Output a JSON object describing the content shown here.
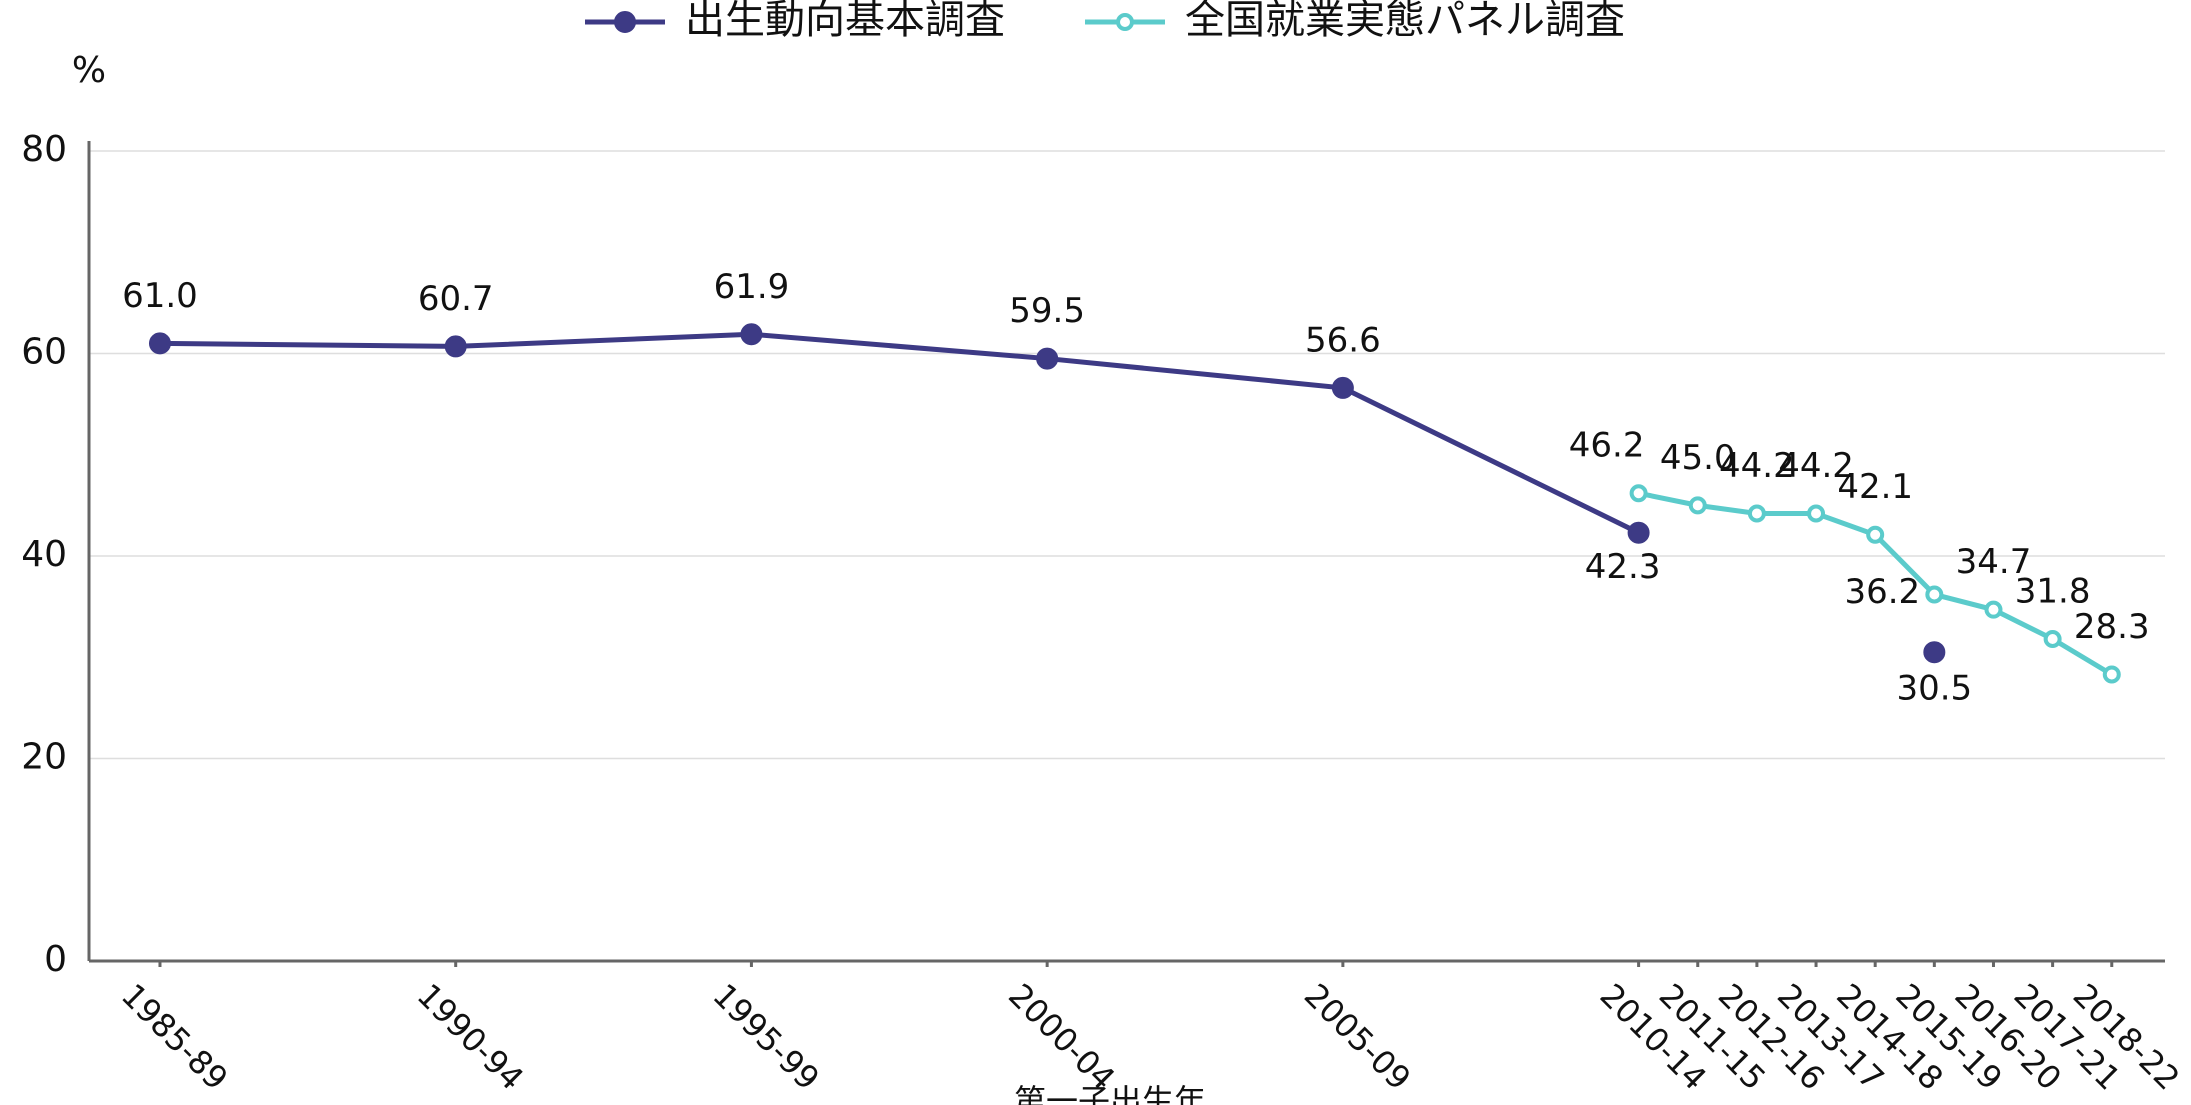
{
  "chart_data": {
    "type": "line",
    "x": [
      1985,
      1990,
      1995,
      2000,
      2005,
      2010,
      2011,
      2012,
      2013,
      2014,
      2015,
      2016,
      2017,
      2018
    ],
    "xlim": [
      1983.8,
      2018.9
    ],
    "xticks": [
      {
        "value": 1985,
        "label": "1985-89"
      },
      {
        "value": 1990,
        "label": "1990-94"
      },
      {
        "value": 1995,
        "label": "1995-99"
      },
      {
        "value": 2000,
        "label": "2000-04"
      },
      {
        "value": 2005,
        "label": "2005-09"
      },
      {
        "value": 2010,
        "label": "2010-14"
      },
      {
        "value": 2011,
        "label": "2011-15"
      },
      {
        "value": 2012,
        "label": "2012-16"
      },
      {
        "value": 2013,
        "label": "2013-17"
      },
      {
        "value": 2014,
        "label": "2014-18"
      },
      {
        "value": 2015,
        "label": "2015-19"
      },
      {
        "value": 2016,
        "label": "2016-20"
      },
      {
        "value": 2017,
        "label": "2017-21"
      },
      {
        "value": 2018,
        "label": "2018-22"
      }
    ],
    "xlabel": "第一子出生年",
    "ylabel": "%",
    "ylim": [
      0,
      80
    ],
    "yticks": [
      0,
      20,
      40,
      60,
      80
    ],
    "grid": true,
    "legend": "top",
    "series": [
      {
        "name": "出生動向基本調査",
        "color": "#3d3a85",
        "marker": "filled",
        "values": [
          61.0,
          60.7,
          61.9,
          59.5,
          56.6,
          42.3,
          null,
          null,
          null,
          null,
          30.5,
          null,
          null,
          null
        ],
        "value_labels": [
          "61.0",
          "60.7",
          "61.9",
          "59.5",
          "56.6",
          "42.3",
          null,
          null,
          null,
          null,
          "30.5",
          null,
          null,
          null
        ]
      },
      {
        "name": "全国就業実態パネル調査",
        "color": "#5bcbcb",
        "marker": "hollow",
        "values": [
          null,
          null,
          null,
          null,
          null,
          46.2,
          45.0,
          44.2,
          44.2,
          42.1,
          36.2,
          34.7,
          31.8,
          28.3
        ],
        "value_labels": [
          null,
          null,
          null,
          null,
          null,
          "46.2",
          "45.0",
          "44.2",
          "44.2",
          "42.1",
          "36.2",
          "34.7",
          "31.8",
          "28.3"
        ]
      }
    ]
  }
}
